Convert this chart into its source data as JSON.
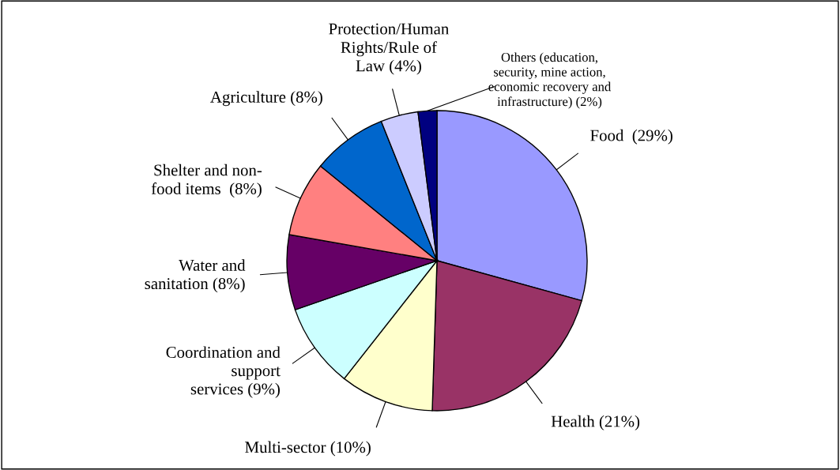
{
  "chart_data": {
    "type": "pie",
    "categories": [
      "Food  (29%)",
      "Health (21%)",
      "Multi-sector (10%)",
      "Coordination and\nsupport\nservices (9%)",
      "Water and\nsanitation (8%)",
      "Shelter and non-\nfood items  (8%)",
      "Agriculture (8%)",
      "Protection/Human\nRights/Rule of\nLaw (4%)",
      "Others (education,\nsecurity, mine action,\neconomic recovery and\ninfrastructure) (2%)"
    ],
    "values": [
      29,
      21,
      10,
      9,
      8,
      8,
      8,
      4,
      2
    ],
    "colors": [
      "#9999ff",
      "#993366",
      "#ffffcc",
      "#ccffff",
      "#660066",
      "#ff8080",
      "#0066cc",
      "#ccccff",
      "#000080"
    ]
  }
}
